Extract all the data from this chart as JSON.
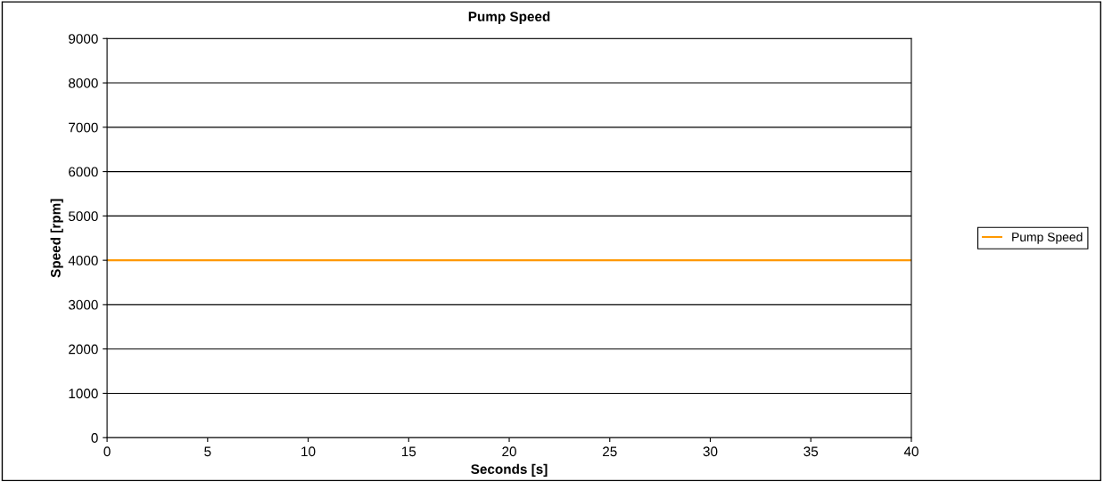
{
  "chart_data": {
    "type": "line",
    "title": "Pump Speed",
    "xlabel": "Seconds [s]",
    "ylabel": "Speed [rpm]",
    "x": [
      0,
      40
    ],
    "series": [
      {
        "name": "Pump Speed",
        "color": "#ff9900",
        "values": [
          4000,
          4000
        ]
      }
    ],
    "xlim": [
      0,
      40
    ],
    "xticks": [
      0,
      5,
      10,
      15,
      20,
      25,
      30,
      35,
      40
    ],
    "ylim": [
      0,
      9000
    ],
    "yticks": [
      0,
      1000,
      2000,
      3000,
      4000,
      5000,
      6000,
      7000,
      8000,
      9000
    ],
    "grid": "y",
    "legend": "right",
    "marker": "none",
    "line_style": "solid"
  }
}
